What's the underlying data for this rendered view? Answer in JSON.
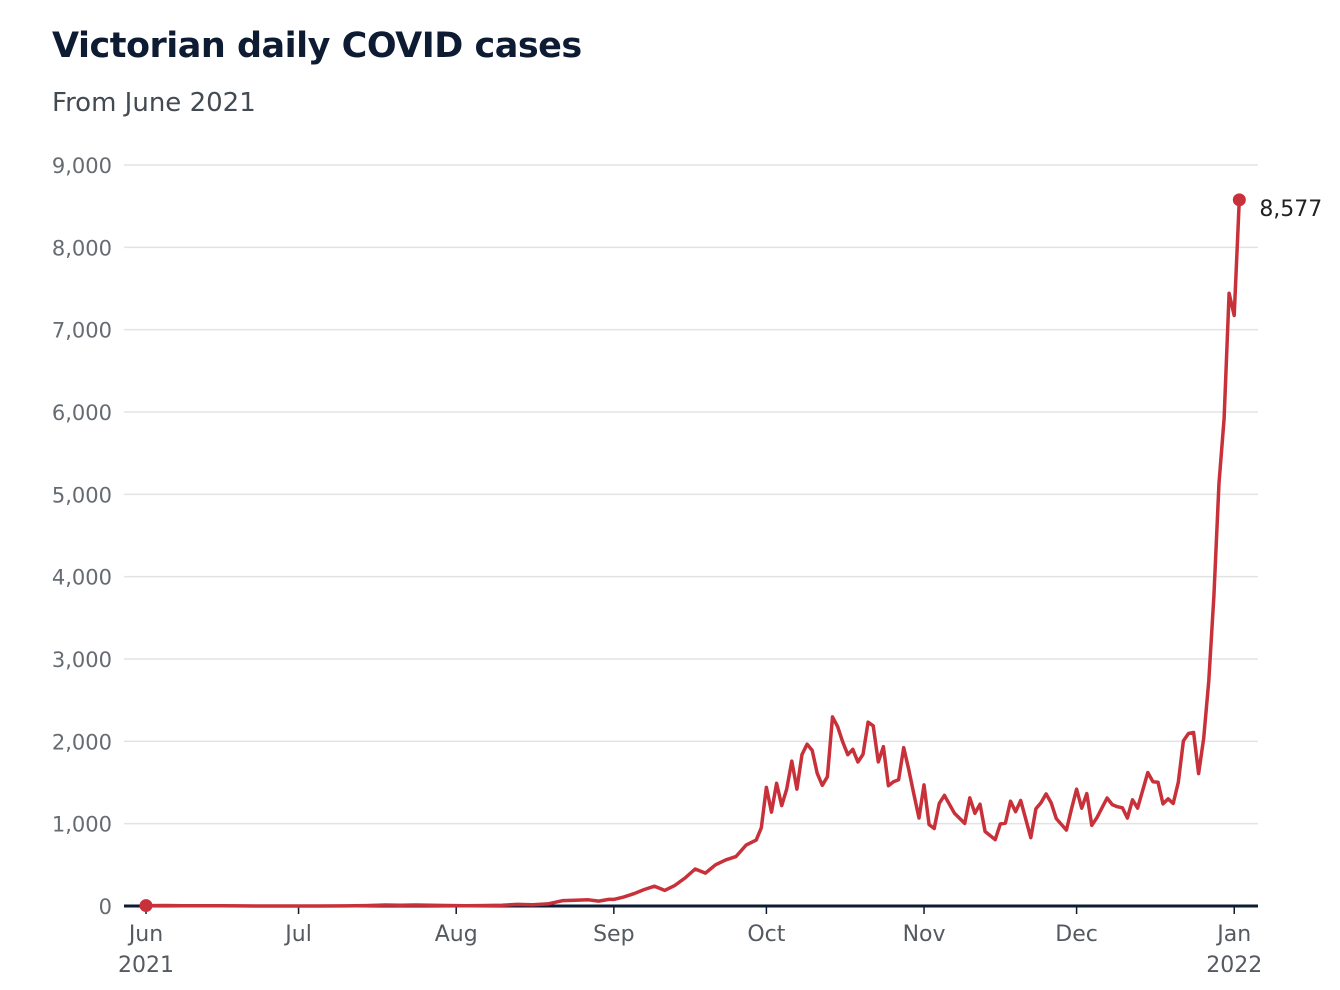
{
  "title": "Victorian daily COVID cases",
  "subtitle": "From June 2021",
  "chart_data": {
    "type": "line",
    "title": "Victorian daily COVID cases",
    "subtitle": "From June 2021",
    "xlabel": "",
    "ylabel": "",
    "grid": true,
    "line_color": "#c8313a",
    "axis_color": "#0d1b33",
    "ylim": [
      0,
      9000
    ],
    "yticks": [
      0,
      1000,
      2000,
      3000,
      4000,
      5000,
      6000,
      7000,
      8000,
      9000
    ],
    "ytick_labels": [
      "0",
      "1,000",
      "2,000",
      "3,000",
      "4,000",
      "5,000",
      "6,000",
      "7,000",
      "8,000",
      "9,000"
    ],
    "xlim": [
      "2021-06-01",
      "2022-01-10"
    ],
    "xticks": [
      {
        "date": "2021-06-01",
        "label": "Jun",
        "year": "2021"
      },
      {
        "date": "2021-07-01",
        "label": "Jul",
        "year": ""
      },
      {
        "date": "2021-08-01",
        "label": "Aug",
        "year": ""
      },
      {
        "date": "2021-09-01",
        "label": "Sep",
        "year": ""
      },
      {
        "date": "2021-10-01",
        "label": "Oct",
        "year": ""
      },
      {
        "date": "2021-11-01",
        "label": "Nov",
        "year": ""
      },
      {
        "date": "2021-12-01",
        "label": "Dec",
        "year": ""
      },
      {
        "date": "2022-01-01",
        "label": "Jan",
        "year": "2022"
      }
    ],
    "series": [
      {
        "points": [
          [
            "2021-06-01",
            5
          ],
          [
            "2021-06-05",
            6
          ],
          [
            "2021-06-08",
            4
          ],
          [
            "2021-06-12",
            3
          ],
          [
            "2021-06-16",
            2
          ],
          [
            "2021-06-20",
            1
          ],
          [
            "2021-06-25",
            0
          ],
          [
            "2021-06-30",
            0
          ],
          [
            "2021-07-05",
            0
          ],
          [
            "2021-07-10",
            1
          ],
          [
            "2021-07-14",
            5
          ],
          [
            "2021-07-18",
            12
          ],
          [
            "2021-07-21",
            8
          ],
          [
            "2021-07-24",
            12
          ],
          [
            "2021-07-27",
            10
          ],
          [
            "2021-07-30",
            6
          ],
          [
            "2021-08-03",
            4
          ],
          [
            "2021-08-07",
            6
          ],
          [
            "2021-08-10",
            10
          ],
          [
            "2021-08-13",
            20
          ],
          [
            "2021-08-16",
            15
          ],
          [
            "2021-08-19",
            25
          ],
          [
            "2021-08-22",
            65
          ],
          [
            "2021-08-25",
            72
          ],
          [
            "2021-08-27",
            75
          ],
          [
            "2021-08-29",
            60
          ],
          [
            "2021-08-31",
            80
          ],
          [
            "2021-09-01",
            80
          ],
          [
            "2021-09-03",
            110
          ],
          [
            "2021-09-05",
            150
          ],
          [
            "2021-09-07",
            200
          ],
          [
            "2021-09-09",
            240
          ],
          [
            "2021-09-11",
            190
          ],
          [
            "2021-09-13",
            250
          ],
          [
            "2021-09-15",
            340
          ],
          [
            "2021-09-17",
            450
          ],
          [
            "2021-09-19",
            400
          ],
          [
            "2021-09-21",
            500
          ],
          [
            "2021-09-23",
            560
          ],
          [
            "2021-09-25",
            600
          ],
          [
            "2021-09-27",
            740
          ],
          [
            "2021-09-29",
            800
          ],
          [
            "2021-09-30",
            950
          ],
          [
            "2021-10-01",
            1440
          ],
          [
            "2021-10-02",
            1140
          ],
          [
            "2021-10-03",
            1490
          ],
          [
            "2021-10-04",
            1220
          ],
          [
            "2021-10-05",
            1420
          ],
          [
            "2021-10-06",
            1760
          ],
          [
            "2021-10-07",
            1420
          ],
          [
            "2021-10-08",
            1840
          ],
          [
            "2021-10-09",
            1965
          ],
          [
            "2021-10-10",
            1890
          ],
          [
            "2021-10-11",
            1612
          ],
          [
            "2021-10-12",
            1466
          ],
          [
            "2021-10-13",
            1571
          ],
          [
            "2021-10-14",
            2297
          ],
          [
            "2021-10-15",
            2179
          ],
          [
            "2021-10-16",
            1993
          ],
          [
            "2021-10-17",
            1838
          ],
          [
            "2021-10-18",
            1903
          ],
          [
            "2021-10-19",
            1749
          ],
          [
            "2021-10-20",
            1841
          ],
          [
            "2021-10-21",
            2232
          ],
          [
            "2021-10-22",
            2189
          ],
          [
            "2021-10-23",
            1750
          ],
          [
            "2021-10-24",
            1935
          ],
          [
            "2021-10-25",
            1461
          ],
          [
            "2021-10-26",
            1510
          ],
          [
            "2021-10-27",
            1534
          ],
          [
            "2021-10-28",
            1923
          ],
          [
            "2021-10-29",
            1656
          ],
          [
            "2021-10-30",
            1355
          ],
          [
            "2021-10-31",
            1069
          ],
          [
            "2021-11-01",
            1471
          ],
          [
            "2021-11-02",
            989
          ],
          [
            "2021-11-03",
            941
          ],
          [
            "2021-11-04",
            1247
          ],
          [
            "2021-11-05",
            1343
          ],
          [
            "2021-11-07",
            1126
          ],
          [
            "2021-11-09",
            1003
          ],
          [
            "2021-11-10",
            1313
          ],
          [
            "2021-11-11",
            1126
          ],
          [
            "2021-11-12",
            1237
          ],
          [
            "2021-11-13",
            905
          ],
          [
            "2021-11-15",
            805
          ],
          [
            "2021-11-16",
            996
          ],
          [
            "2021-11-17",
            1007
          ],
          [
            "2021-11-18",
            1273
          ],
          [
            "2021-11-19",
            1145
          ],
          [
            "2021-11-20",
            1281
          ],
          [
            "2021-11-22",
            829
          ],
          [
            "2021-11-23",
            1180
          ],
          [
            "2021-11-24",
            1254
          ],
          [
            "2021-11-25",
            1362
          ],
          [
            "2021-11-26",
            1252
          ],
          [
            "2021-11-27",
            1061
          ],
          [
            "2021-11-29",
            922
          ],
          [
            "2021-11-30",
            1179
          ],
          [
            "2021-12-01",
            1419
          ],
          [
            "2021-12-02",
            1188
          ],
          [
            "2021-12-03",
            1365
          ],
          [
            "2021-12-04",
            980
          ],
          [
            "2021-12-05",
            1073
          ],
          [
            "2021-12-07",
            1312
          ],
          [
            "2021-12-08",
            1232
          ],
          [
            "2021-12-09",
            1206
          ],
          [
            "2021-12-10",
            1193
          ],
          [
            "2021-12-11",
            1069
          ],
          [
            "2021-12-12",
            1290
          ],
          [
            "2021-12-13",
            1189
          ],
          [
            "2021-12-15",
            1622
          ],
          [
            "2021-12-16",
            1510
          ],
          [
            "2021-12-17",
            1504
          ],
          [
            "2021-12-18",
            1240
          ],
          [
            "2021-12-19",
            1302
          ],
          [
            "2021-12-20",
            1245
          ],
          [
            "2021-12-21",
            1503
          ],
          [
            "2021-12-22",
            2005
          ],
          [
            "2021-12-23",
            2095
          ],
          [
            "2021-12-24",
            2108
          ],
          [
            "2021-12-25",
            1608
          ],
          [
            "2021-12-26",
            2038
          ],
          [
            "2021-12-27",
            2738
          ],
          [
            "2021-12-28",
            3767
          ],
          [
            "2021-12-29",
            5137
          ],
          [
            "2021-12-30",
            5919
          ],
          [
            "2021-12-31",
            7442
          ],
          [
            "2022-01-01",
            7172
          ],
          [
            "2022-01-02",
            8577
          ]
        ]
      }
    ],
    "annotations": [
      {
        "date": "2022-01-02",
        "value": 8577,
        "label": "8,577"
      }
    ]
  }
}
